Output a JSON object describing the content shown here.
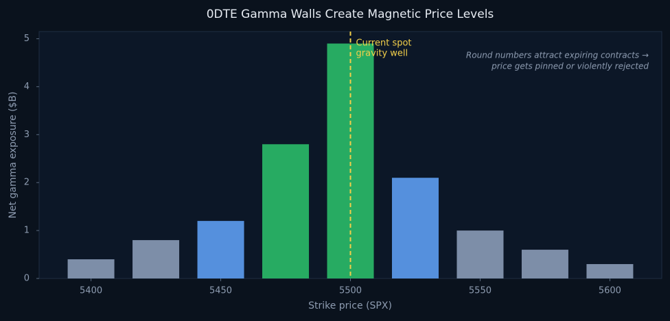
{
  "chart_data": {
    "type": "bar",
    "title": "0DTE Gamma Walls Create Magnetic Price Levels",
    "x_label": "Strike price (SPX)",
    "y_label": "Net gamma exposure ($B)",
    "x": [
      5400,
      5425,
      5450,
      5475,
      5500,
      5525,
      5550,
      5575,
      5600
    ],
    "values": [
      0.4,
      0.8,
      1.2,
      2.8,
      4.9,
      2.1,
      1.0,
      0.6,
      0.3
    ],
    "colors": [
      "#7d8ea8",
      "#7d8ea8",
      "#5590dd",
      "#27ab62",
      "#27ab62",
      "#5590dd",
      "#7d8ea8",
      "#7d8ea8",
      "#7d8ea8"
    ],
    "xlim": [
      5380,
      5620
    ],
    "xticks": [
      5400,
      5450,
      5500,
      5550,
      5600
    ],
    "ylim": [
      0,
      5.15
    ],
    "yticks": [
      0,
      1,
      2,
      3,
      4,
      5
    ],
    "grid": false,
    "spot_line": {
      "x": 5500,
      "color": "#f2cf4a",
      "label": [
        "Current spot",
        "gravity well"
      ]
    },
    "note": [
      "Round numbers attract expiring contracts →",
      "price gets pinned or violently rejected"
    ]
  }
}
